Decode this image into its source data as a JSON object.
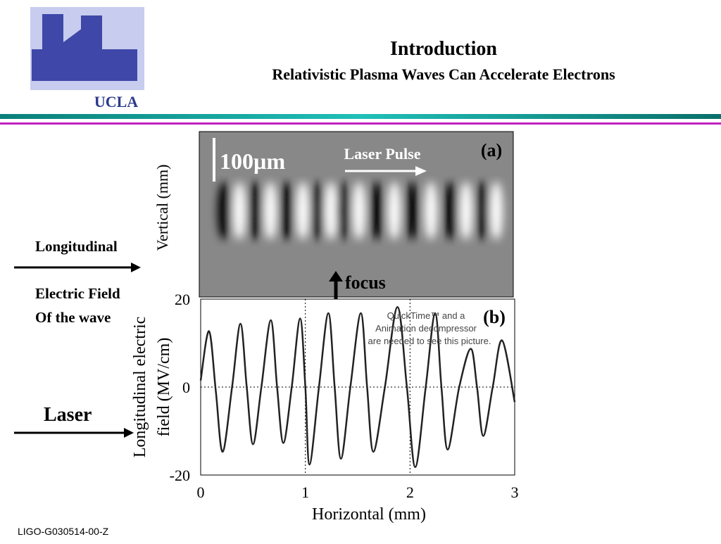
{
  "header": {
    "logo_text": "UCLA",
    "title": "Introduction",
    "subtitle": "Relativistic Plasma Waves Can Accelerate Electrons"
  },
  "side": {
    "longitudinal": "Longitudinal",
    "electric_field": "Electric Field",
    "of_the_wave": "Of the wave",
    "laser": "Laser"
  },
  "image_a": {
    "scale": "100µm",
    "laser_pulse": "Laser Pulse",
    "panel": "(a)",
    "y_label": "Vertical (mm)"
  },
  "focus": "focus",
  "quicktime_notice": [
    "QuickTime™ and a",
    "Animation decompressor",
    "are needed to see this picture."
  ],
  "footer": "LIGO-G030514-00-Z",
  "chart_data": {
    "type": "line",
    "panel": "(b)",
    "xlabel": "Horizontal (mm)",
    "ylabel": [
      "Longitudinal electric",
      "field (MV/cm)"
    ],
    "x": [
      0,
      0.08,
      0.145,
      0.21,
      0.3,
      0.38,
      0.44,
      0.5,
      0.58,
      0.67,
      0.73,
      0.79,
      0.87,
      0.95,
      1.0,
      1.04,
      1.13,
      1.22,
      1.28,
      1.34,
      1.43,
      1.53,
      1.59,
      1.65,
      1.76,
      1.88,
      1.97,
      2.05,
      2.15,
      2.24,
      2.3,
      2.36,
      2.47,
      2.58,
      2.64,
      2.7,
      2.79,
      2.88,
      3.0
    ],
    "values": [
      1.5,
      12.7,
      -1,
      -14.7,
      0,
      14.4,
      0,
      -13,
      0,
      15.2,
      0,
      -12.7,
      0,
      15.6,
      0,
      -17.6,
      0,
      16.8,
      0,
      -16.3,
      0,
      16.8,
      0,
      -14.7,
      0,
      18.2,
      0,
      -18.2,
      0,
      16.8,
      0,
      -14.2,
      0,
      8.7,
      0,
      -11.1,
      0,
      10.6,
      -3.4
    ],
    "color": "#222222",
    "xlim": [
      0,
      3
    ],
    "ylim": [
      -20,
      20
    ],
    "xticks": [
      0,
      1,
      2,
      3
    ],
    "yticks": [
      -20,
      0,
      20
    ],
    "grid": true
  }
}
